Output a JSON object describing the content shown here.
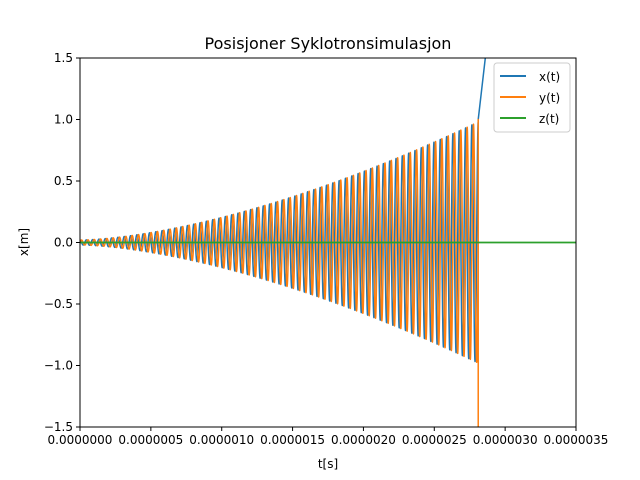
{
  "chart_data": {
    "type": "line",
    "title": "Posisjoner Syklotronsimulasjon",
    "xlabel": "t[s]",
    "ylabel": "x[m]",
    "xlim": [
      0,
      3.5e-06
    ],
    "ylim": [
      -1.5,
      1.5
    ],
    "x_ticks": [
      0,
      5e-07,
      1e-06,
      1.5e-06,
      2e-06,
      2.5e-06,
      3e-06,
      3.5e-06
    ],
    "x_tick_labels": [
      "0.0000000",
      "0.0000005",
      "0.0000010",
      "0.0000015",
      "0.0000020",
      "0.0000025",
      "0.0000030",
      "0.0000035"
    ],
    "y_ticks": [
      -1.5,
      -1.0,
      -0.5,
      0.0,
      0.5,
      1.0,
      1.5
    ],
    "y_tick_labels": [
      "−1.5",
      "−1.0",
      "−0.5",
      "0.0",
      "0.5",
      "1.0",
      "1.5"
    ],
    "grid": false,
    "legend_position": "top-right",
    "series": [
      {
        "name": "x(t)",
        "color": "#1f77b4"
      },
      {
        "name": "y(t)",
        "color": "#ff7f0e"
      },
      {
        "name": "z(t)",
        "color": "#2ca02c"
      }
    ],
    "oscillation": {
      "t_end": 2.81e-06,
      "cycles": 63,
      "amplitude_start": 0.02,
      "amplitude_end": 0.98,
      "x_after_end": [
        [
          2.81e-06,
          1.0
        ],
        [
          2.86e-06,
          1.5
        ]
      ],
      "y_after_end": [
        [
          2.81e-06,
          1.0
        ],
        [
          2.81e-06,
          -1.5
        ]
      ],
      "z_value": 0.0
    }
  }
}
